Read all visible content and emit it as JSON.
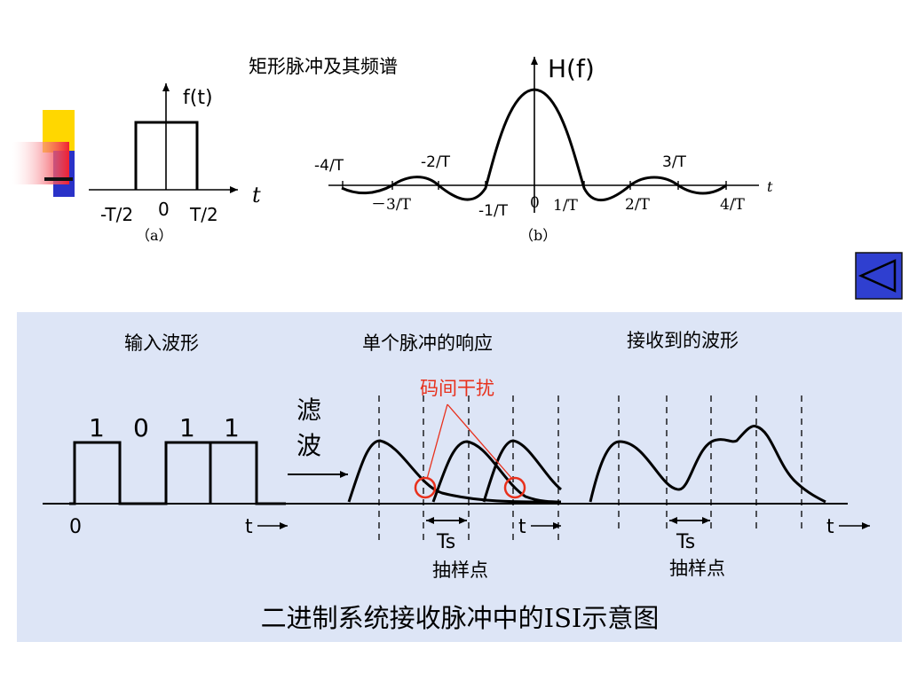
{
  "top": {
    "title": "矩形脉冲及其频谱",
    "pulse": {
      "ylabel": "f(t)",
      "xlabel": "t",
      "ticks": [
        "-T/2",
        "0",
        "T/2"
      ],
      "caption": "（a）"
    },
    "spectrum": {
      "ylabel": "H(f)",
      "xlabel": "t",
      "ticks_above": [
        "-4/T",
        "-2/T",
        "3/T"
      ],
      "ticks_below": [
        "－3/T",
        "-1/T",
        "0",
        "1/T",
        "2/T",
        "4/T"
      ],
      "caption": "（b）"
    }
  },
  "bottom": {
    "label_input": "输入波形",
    "label_single": "单个脉冲的响应",
    "label_received": "接收到的波形",
    "isi_label": "码间干扰",
    "filter_label": [
      "滤",
      "波"
    ],
    "bits": [
      "1",
      "0",
      "1",
      "1"
    ],
    "axis_zero": "0",
    "t_labels": [
      "t",
      "t",
      "t"
    ],
    "ts_labels": [
      "Ts",
      "Ts"
    ],
    "sample_labels": [
      "抽样点",
      "抽样点"
    ],
    "caption": "二进制系统接收脉冲中的ISI示意图"
  },
  "colors": {
    "panel_bg": "#dde5f6",
    "isi_red": "#e8301c",
    "nav_blue": "#2f3fd0",
    "deco_yellow": "#ffd700",
    "deco_blue": "#2a32c8",
    "deco_red": "#f02030"
  },
  "nav": {
    "icon": "triangle-left-icon"
  }
}
